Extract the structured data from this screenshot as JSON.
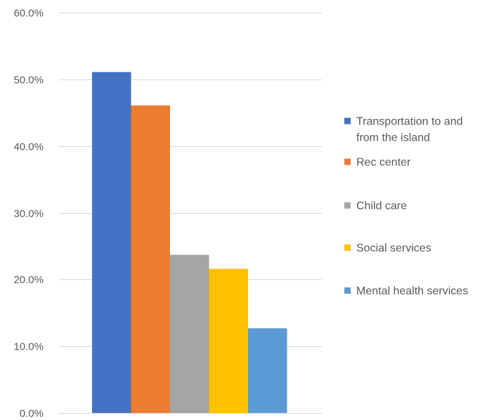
{
  "chart_data": {
    "type": "bar",
    "title": "",
    "xlabel": "",
    "ylabel": "",
    "ylim": [
      0,
      60
    ],
    "yticks": [
      0,
      10,
      20,
      30,
      40,
      50,
      60
    ],
    "ytick_labels": [
      "0.0%",
      "10.0%",
      "20.0%",
      "30.0%",
      "40.0%",
      "50.0%",
      "60.0%"
    ],
    "grid": true,
    "legend_position": "right",
    "series": [
      {
        "name": "Transportation to and from the island",
        "value": 51.1,
        "color": "#4472c4",
        "legend_lines": [
          "Transportation to and",
          "from the island"
        ]
      },
      {
        "name": "Rec center",
        "value": 46.1,
        "color": "#ed7d31",
        "legend_lines": [
          "Rec center"
        ]
      },
      {
        "name": "Child care",
        "value": 23.7,
        "color": "#a5a5a5",
        "legend_lines": [
          "Child care"
        ]
      },
      {
        "name": "Social services",
        "value": 21.6,
        "color": "#ffc000",
        "legend_lines": [
          "Social services"
        ]
      },
      {
        "name": "Mental health services",
        "value": 12.7,
        "color": "#5b9bd5",
        "legend_lines": [
          "Mental health services"
        ]
      }
    ]
  }
}
